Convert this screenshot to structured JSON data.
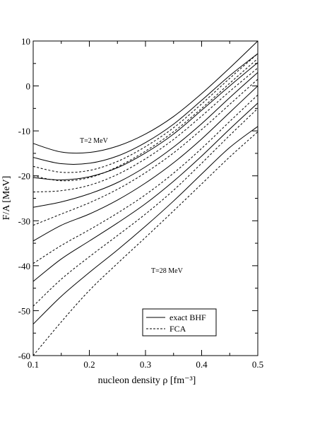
{
  "chart_data": {
    "type": "line",
    "xlabel": "nucleon density  ρ  [fm⁻³]",
    "ylabel": "F/A [MeV]",
    "xlim": [
      0.1,
      0.5
    ],
    "ylim": [
      -60,
      10
    ],
    "xticks": [
      0.1,
      0.2,
      0.3,
      0.4,
      0.5
    ],
    "xtick_labels": [
      "0.1",
      "0.2",
      "0.3",
      "0.4",
      "0.5"
    ],
    "yticks": [
      -60,
      -50,
      -40,
      -30,
      -20,
      -10,
      0,
      10
    ],
    "ytick_labels": [
      "-60",
      "-50",
      "-40",
      "-30",
      "-20",
      "-10",
      "0",
      "10"
    ],
    "grid": false,
    "legend_position": "bottom-right",
    "annotations": [
      {
        "text": "T=2 MeV",
        "x": 0.2,
        "y": -12.5
      },
      {
        "text": "T=28 MeV",
        "x": 0.3,
        "y": -41.5
      }
    ],
    "legend": [
      {
        "label": "exact BHF",
        "style": "solid"
      },
      {
        "label": "FCA",
        "style": "dashed"
      }
    ],
    "x": [
      0.1,
      0.15,
      0.2,
      0.25,
      0.3,
      0.35,
      0.4,
      0.45,
      0.5
    ],
    "series": [
      {
        "group": "exact BHF",
        "style": "solid",
        "values": [
          -12.8,
          -14.7,
          -14.8,
          -13.4,
          -10.7,
          -6.8,
          -1.7,
          4.0,
          10.0
        ]
      },
      {
        "group": "FCA",
        "style": "dashed",
        "values": [
          -17.9,
          -19.2,
          -18.8,
          -16.8,
          -13.5,
          -9.3,
          -4.0,
          1.7,
          7.2
        ]
      },
      {
        "group": "exact BHF",
        "style": "solid",
        "values": [
          -15.9,
          -17.3,
          -17.2,
          -15.6,
          -12.6,
          -8.5,
          -3.2,
          2.3,
          7.2
        ]
      },
      {
        "group": "FCA",
        "style": "dashed",
        "values": [
          -20.0,
          -21.1,
          -20.4,
          -18.0,
          -14.5,
          -10.2,
          -5.0,
          0.6,
          6.1
        ]
      },
      {
        "group": "exact BHF",
        "style": "solid",
        "values": [
          -20.4,
          -20.9,
          -20.2,
          -18.2,
          -14.9,
          -10.7,
          -5.4,
          0.0,
          5.2
        ]
      },
      {
        "group": "FCA",
        "style": "dashed",
        "values": [
          -23.6,
          -23.3,
          -22.1,
          -19.7,
          -16.2,
          -11.9,
          -6.7,
          -1.2,
          4.0
        ]
      },
      {
        "group": "exact BHF",
        "style": "solid",
        "values": [
          -27.0,
          -25.8,
          -24.0,
          -21.5,
          -18.0,
          -13.6,
          -8.4,
          -2.6,
          3.0
        ]
      },
      {
        "group": "FCA",
        "style": "dashed",
        "values": [
          -31.0,
          -28.5,
          -26.0,
          -23.0,
          -19.3,
          -14.9,
          -9.7,
          -4.1,
          1.5
        ]
      },
      {
        "group": "exact BHF",
        "style": "solid",
        "values": [
          -34.5,
          -31.0,
          -28.5,
          -25.4,
          -21.6,
          -17.1,
          -11.8,
          -5.9,
          0.0
        ]
      },
      {
        "group": "FCA",
        "style": "dashed",
        "values": [
          -39.5,
          -35.5,
          -32.0,
          -28.3,
          -24.2,
          -19.4,
          -13.9,
          -7.9,
          -2.0
        ]
      },
      {
        "group": "exact BHF",
        "style": "solid",
        "values": [
          -43.5,
          -38.5,
          -34.5,
          -30.5,
          -26.2,
          -21.2,
          -15.6,
          -9.6,
          -3.8
        ]
      },
      {
        "group": "FCA",
        "style": "dashed",
        "values": [
          -49.0,
          -43.0,
          -38.0,
          -33.3,
          -28.5,
          -23.2,
          -17.2,
          -11.0,
          -5.0
        ]
      },
      {
        "group": "exact BHF",
        "style": "solid",
        "values": [
          -53.0,
          -46.8,
          -41.5,
          -36.5,
          -31.2,
          -25.6,
          -19.6,
          -13.7,
          -9.0
        ]
      },
      {
        "group": "FCA",
        "style": "dashed",
        "values": [
          -60.0,
          -52.5,
          -45.5,
          -39.5,
          -33.7,
          -27.8,
          -21.8,
          -15.8,
          -10.2
        ]
      }
    ]
  }
}
